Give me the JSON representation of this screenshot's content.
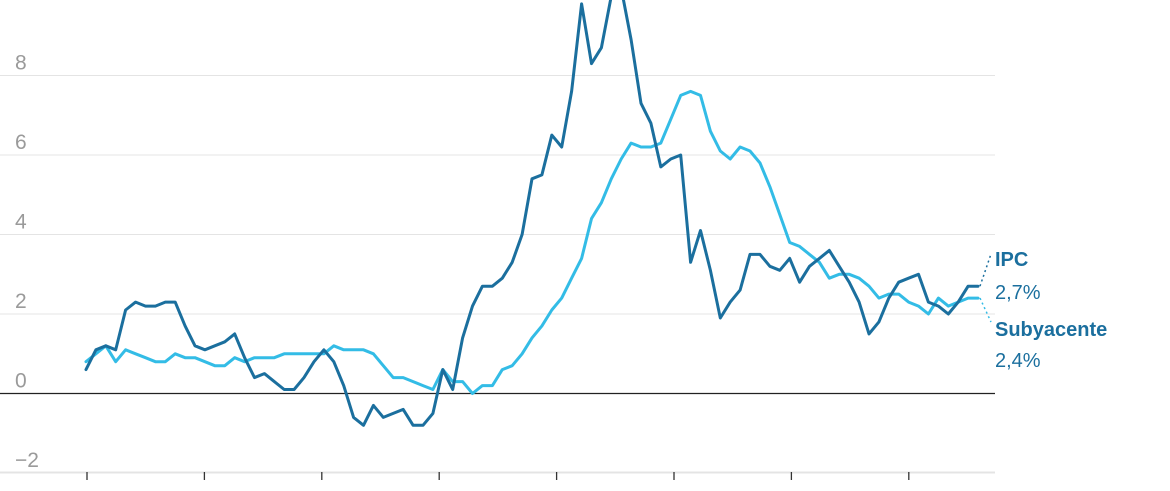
{
  "chart_data": {
    "type": "line",
    "ylim": [
      -2.2,
      9.9
    ],
    "y_ticks": [
      {
        "value": 8,
        "label": "8"
      },
      {
        "value": 6,
        "label": "6"
      },
      {
        "value": 4,
        "label": "4"
      },
      {
        "value": 2,
        "label": "2"
      },
      {
        "value": 0,
        "label": "0"
      },
      {
        "value": -2,
        "label": "−2"
      }
    ],
    "x_tick_count": 8,
    "grid": true,
    "zero_line": true,
    "colors": {
      "ipc": "#1b6f9e",
      "subyacente": "#33bce6",
      "grid": "#e4e4e4",
      "zero": "#222222",
      "tick_text": "#9a9a9a"
    },
    "series": [
      {
        "name": "IPC",
        "end_value_label": "2,7%",
        "color": "#1b6f9e",
        "values": [
          0.6,
          1.1,
          1.2,
          1.1,
          2.1,
          2.3,
          2.2,
          2.2,
          2.3,
          2.3,
          1.7,
          1.2,
          1.1,
          1.2,
          1.3,
          1.5,
          0.9,
          0.4,
          0.5,
          0.3,
          0.1,
          0.1,
          0.4,
          0.8,
          1.1,
          0.8,
          0.2,
          -0.6,
          -0.8,
          -0.3,
          -0.6,
          -0.5,
          -0.4,
          -0.8,
          -0.8,
          -0.5,
          0.6,
          0.1,
          1.4,
          2.2,
          2.7,
          2.7,
          2.9,
          3.3,
          4.0,
          5.4,
          5.5,
          6.5,
          6.2,
          7.6,
          9.8,
          8.3,
          8.7,
          10.0,
          10.2,
          8.9,
          7.3,
          6.8,
          5.7,
          5.9,
          6.0,
          3.3,
          4.1,
          3.1,
          1.9,
          2.3,
          2.6,
          3.5,
          3.5,
          3.2,
          3.1,
          3.4,
          2.8,
          3.2,
          3.4,
          3.6,
          3.2,
          2.8,
          2.3,
          1.5,
          1.8,
          2.4,
          2.8,
          2.9,
          3.0,
          2.3,
          2.2,
          2.0,
          2.3,
          2.7,
          2.7
        ]
      },
      {
        "name": "Subyacente",
        "end_value_label": "2,4%",
        "color": "#33bce6",
        "values": [
          0.8,
          1.0,
          1.2,
          0.8,
          1.1,
          1.0,
          0.9,
          0.8,
          0.8,
          1.0,
          0.9,
          0.9,
          0.8,
          0.7,
          0.7,
          0.9,
          0.8,
          0.9,
          0.9,
          0.9,
          1.0,
          1.0,
          1.0,
          1.0,
          1.0,
          1.2,
          1.1,
          1.1,
          1.1,
          1.0,
          0.7,
          0.4,
          0.4,
          0.3,
          0.2,
          0.1,
          0.6,
          0.3,
          0.3,
          0.0,
          0.2,
          0.2,
          0.6,
          0.7,
          1.0,
          1.4,
          1.7,
          2.1,
          2.4,
          2.9,
          3.4,
          4.4,
          4.8,
          5.4,
          5.9,
          6.3,
          6.2,
          6.2,
          6.3,
          6.9,
          7.5,
          7.6,
          7.5,
          6.6,
          6.1,
          5.9,
          6.2,
          6.1,
          5.8,
          5.2,
          4.5,
          3.8,
          3.7,
          3.5,
          3.3,
          2.9,
          3.0,
          3.0,
          2.9,
          2.7,
          2.4,
          2.5,
          2.5,
          2.3,
          2.2,
          2.0,
          2.4,
          2.2,
          2.3,
          2.4,
          2.4
        ]
      }
    ]
  }
}
